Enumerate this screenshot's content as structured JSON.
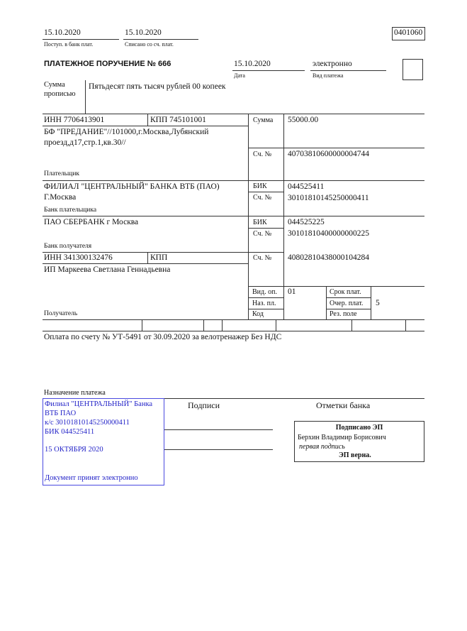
{
  "header": {
    "received_date": "15.10.2020",
    "received_label": "Поступ. в банк плат.",
    "debited_date": "15.10.2020",
    "debited_label": "Списано со сч. плат.",
    "form_code": "0401060"
  },
  "title": "ПЛАТЕЖНОЕ ПОРУЧЕНИЕ № 666",
  "date": "15.10.2020",
  "date_label": "Дата",
  "payment_type": "электронно",
  "payment_type_label": "Вид платежа",
  "amount_words_label": "Сумма прописью",
  "amount_words": "Пятьдесят пять тысяч рублей 00 копеек",
  "payer": {
    "inn": "ИНН 7706413901",
    "kpp": "КПП 745101001",
    "name_line1": "БФ \"ПРЕДАНИЕ\"//101000,г.Москва,Лубянский",
    "name_line2": "проезд,д17,стр.1,кв.30//",
    "label": "Плательщик",
    "amount_label": "Сумма",
    "amount": "55000.00",
    "account_label": "Сч. №",
    "account": "40703810600000004744"
  },
  "payer_bank": {
    "name_line1": "ФИЛИАЛ \"ЦЕНТРАЛЬНЫЙ\" БАНКА ВТБ (ПАО)",
    "name_line2": "Г.Москва",
    "label": "Банк плательщика",
    "bik_label": "БИК",
    "bik": "044525411",
    "account_label": "Сч. №",
    "account": "30101810145250000411"
  },
  "payee_bank": {
    "name": "ПАО СБЕРБАНК г Москва",
    "label": "Банк получателя",
    "bik_label": "БИК",
    "bik": "044525225",
    "account_label": "Сч. №",
    "account": "30101810400000000225"
  },
  "payee": {
    "inn": "ИНН 341300132476",
    "kpp": "КПП",
    "name": "ИП Маркеева Светлана Геннадьевна",
    "label": "Получатель",
    "account_label": "Сч. №",
    "account": "40802810438000104284"
  },
  "details": {
    "op_type_label": "Вид. оп.",
    "op_type": "01",
    "purpose_code_label": "Наз. пл.",
    "code_label": "Код",
    "due_label": "Срок плат.",
    "priority_label": "Очер. плат.",
    "priority": "5",
    "reserve_label": "Рез. поле"
  },
  "purpose": "Оплата по счету № УТ-5491 от 30.09.2020 за велотренажер Без НДС",
  "purpose_label": "Назначение платежа",
  "signatures_label": "Подписи",
  "bank_marks_label": "Отметки банка",
  "bank_stamp": {
    "line1": "Филиал \"ЦЕНТРАЛЬНЫЙ\" Банка",
    "line2": "ВТБ ПАО",
    "line3": "к/с 30101810145250000411",
    "line4": "БИК 044525411",
    "date": "15 ОКТЯБРЯ 2020",
    "note": "Документ принят электронно",
    "color": "#2323c8"
  },
  "esign": {
    "title": "Подписано ЭП",
    "signer": "Берхин Владимир Борисович",
    "role": "первая подпись",
    "status": "ЭП верна."
  }
}
